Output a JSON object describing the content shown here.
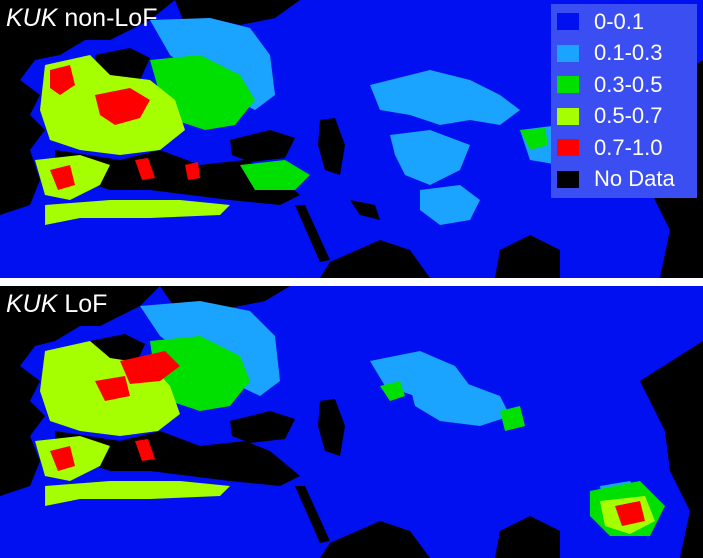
{
  "panels": [
    {
      "gene": "KUK",
      "title_suffix": " non-LoF"
    },
    {
      "gene": "KUK",
      "title_suffix": " LoF"
    }
  ],
  "legend": [
    {
      "label": "0-0.1",
      "color": "#0010f0"
    },
    {
      "label": "0.1-0.3",
      "color": "#1aa3ff"
    },
    {
      "label": "0.3-0.5",
      "color": "#00e000"
    },
    {
      "label": "0.5-0.7",
      "color": "#a6ff00"
    },
    {
      "label": "0.7-1.0",
      "color": "#ff0000"
    },
    {
      "label": "No Data",
      "color": "#000000"
    }
  ],
  "colors": {
    "low": "#0010f0",
    "midlow": "#1aa3ff",
    "mid": "#00e000",
    "midhigh": "#a6ff00",
    "high": "#ff0000",
    "nodata": "#000000"
  }
}
